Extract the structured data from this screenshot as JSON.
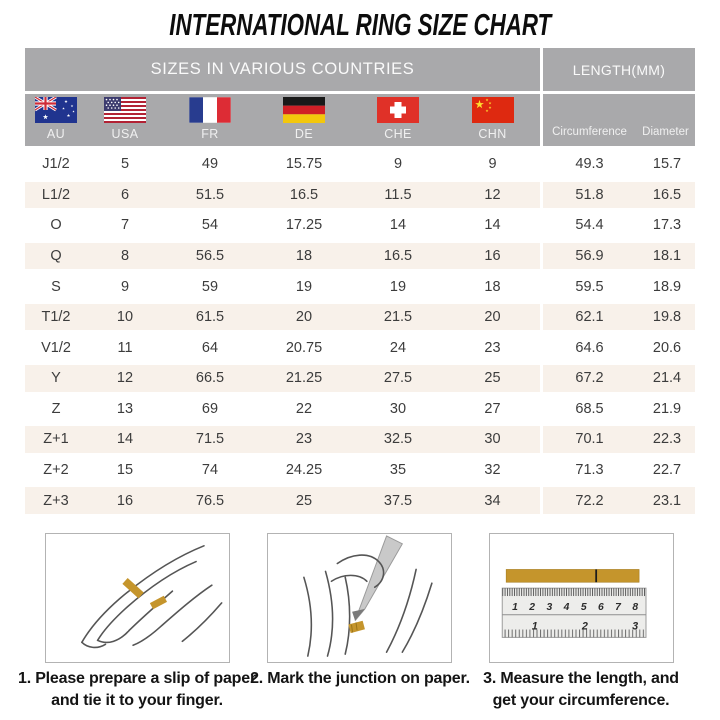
{
  "title": "INTERNATIONAL RING SIZE CHART",
  "table": {
    "header_left": "SIZES IN VARIOUS COUNTRIES",
    "header_right": "LENGTH(MM)",
    "countries": [
      {
        "code": "AU",
        "flag_icon": "australia-flag-icon"
      },
      {
        "code": "USA",
        "flag_icon": "usa-flag-icon"
      },
      {
        "code": "FR",
        "flag_icon": "france-flag-icon"
      },
      {
        "code": "DE",
        "flag_icon": "germany-flag-icon"
      },
      {
        "code": "CHE",
        "flag_icon": "switzerland-flag-icon"
      },
      {
        "code": "CHN",
        "flag_icon": "china-flag-icon"
      }
    ],
    "length_columns": [
      "Circumference",
      "Diameter"
    ],
    "rows": [
      {
        "cells": [
          "J1/2",
          "5",
          "49",
          "15.75",
          "9",
          "9",
          "49.3",
          "15.7"
        ]
      },
      {
        "cells": [
          "L1/2",
          "6",
          "51.5",
          "16.5",
          "11.5",
          "12",
          "51.8",
          "16.5"
        ]
      },
      {
        "cells": [
          "O",
          "7",
          "54",
          "17.25",
          "14",
          "14",
          "54.4",
          "17.3"
        ]
      },
      {
        "cells": [
          "Q",
          "8",
          "56.5",
          "18",
          "16.5",
          "16",
          "56.9",
          "18.1"
        ]
      },
      {
        "cells": [
          "S",
          "9",
          "59",
          "19",
          "19",
          "18",
          "59.5",
          "18.9"
        ]
      },
      {
        "cells": [
          "T1/2",
          "10",
          "61.5",
          "20",
          "21.5",
          "20",
          "62.1",
          "19.8"
        ]
      },
      {
        "cells": [
          "V1/2",
          "11",
          "64",
          "20.75",
          "24",
          "23",
          "64.6",
          "20.6"
        ]
      },
      {
        "cells": [
          "Y",
          "12",
          "66.5",
          "21.25",
          "27.5",
          "25",
          "67.2",
          "21.4"
        ]
      },
      {
        "cells": [
          "Z",
          "13",
          "69",
          "22",
          "30",
          "27",
          "68.5",
          "21.9"
        ]
      },
      {
        "cells": [
          "Z+1",
          "14",
          "71.5",
          "23",
          "32.5",
          "30",
          "70.1",
          "22.3"
        ]
      },
      {
        "cells": [
          "Z+2",
          "15",
          "74",
          "24.25",
          "35",
          "32",
          "71.3",
          "22.7"
        ]
      },
      {
        "cells": [
          "Z+3",
          "16",
          "76.5",
          "25",
          "37.5",
          "34",
          "72.2",
          "23.1"
        ]
      }
    ]
  },
  "instructions": [
    {
      "line1": "1. Please prepare a slip of paper",
      "line2": "and tie it to your finger.",
      "illustration_icon": "hand-with-paper-strip-illustration"
    },
    {
      "line1": "2. Mark the junction on paper.",
      "line2": "",
      "illustration_icon": "mark-junction-illustration"
    },
    {
      "line1": "3. Measure the length, and",
      "line2": "get your circumference.",
      "illustration_icon": "ruler-measurement-illustration"
    }
  ],
  "ruler": {
    "cm_scale": "1 2 3 4 5 6 7 8",
    "inch_scale": "1 2 3"
  },
  "colors": {
    "header_gray": "#a9a9ab",
    "row_alt_beige": "#f8f1ea",
    "paper_strip_gold": "#c5952c",
    "text_dark": "#3c3c3c"
  }
}
